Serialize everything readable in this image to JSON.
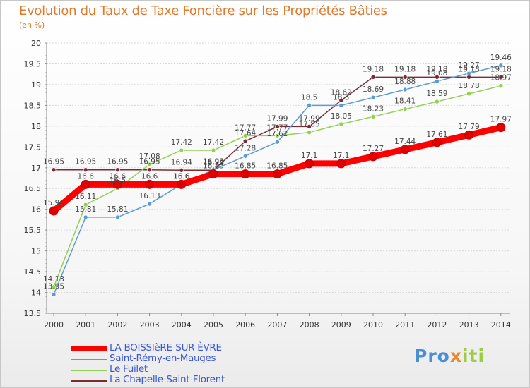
{
  "chart_data": {
    "type": "line",
    "title": "Evolution du Taux de Taxe Foncière sur les Propriétés Bâties",
    "unit_label": "(en %)",
    "xlabel": "",
    "ylabel": "",
    "x": [
      "2000",
      "2001",
      "2002",
      "2003",
      "2004",
      "2005",
      "2006",
      "2007",
      "2008",
      "2009",
      "2010",
      "2011",
      "2012",
      "2013",
      "2014"
    ],
    "ylim": [
      13.5,
      20
    ],
    "yticks": [
      "13.5",
      "14",
      "14.5",
      "15",
      "15.5",
      "16",
      "16.5",
      "17",
      "17.5",
      "18",
      "18.5",
      "19",
      "19.5",
      "20"
    ],
    "series": [
      {
        "name": "LA BOISSIèRE-SUR-ÈVRE",
        "color": "#ff0000",
        "values": [
          15.96,
          16.6,
          16.6,
          16.6,
          16.6,
          16.85,
          16.85,
          16.85,
          17.1,
          17.1,
          17.27,
          17.44,
          17.61,
          17.79,
          17.97
        ]
      },
      {
        "name": "Saint-Rémy-en-Mauges",
        "color": "#5b9bd5",
        "values": [
          13.95,
          15.81,
          15.81,
          16.13,
          16.6,
          16.95,
          17.28,
          17.62,
          18.5,
          18.5,
          18.69,
          18.88,
          19.08,
          19.27,
          19.46
        ]
      },
      {
        "name": "Le Fuilet",
        "color": "#92d050",
        "values": [
          14.13,
          16.11,
          16.5,
          17.08,
          17.42,
          17.42,
          17.77,
          17.77,
          17.85,
          18.05,
          18.23,
          18.41,
          18.59,
          18.78,
          18.97
        ]
      },
      {
        "name": "La Chapelle-Saint-Florent",
        "color": "#7b2c33",
        "values": [
          16.95,
          16.95,
          16.95,
          16.95,
          16.94,
          16.94,
          17.64,
          17.99,
          17.99,
          18.62,
          19.18,
          19.18,
          19.18,
          19.18,
          19.18
        ]
      }
    ]
  },
  "data_labels": [
    [
      "15.96",
      "16.6",
      "16.6",
      "16.6",
      "16.6",
      "16.85",
      "16.85",
      "16.85",
      "17.1",
      "17.1",
      "17.27",
      "17.44",
      "17.61",
      "17.79",
      "17.97"
    ],
    [
      "13.95",
      "15.81",
      "15.81",
      "16.13",
      "16.6",
      "16.95",
      "17.28",
      "17.62",
      "18.5",
      "18.5",
      "18.69",
      "18.88",
      "19.08",
      "19.27",
      "19.46"
    ],
    [
      "14.13",
      "16.11",
      "16.5",
      "17.08",
      "17.42",
      "17.42",
      "17.77",
      "17.77",
      "17.85",
      "18.05",
      "18.23",
      "18.41",
      "18.59",
      "18.78",
      "18.97"
    ],
    [
      "16.95",
      "16.95",
      "16.95",
      "16.95",
      "16.94",
      "16.94",
      "17.64",
      "17.99",
      "17.99",
      "18.62",
      "19.18",
      "19.18",
      "19.18",
      "19.18",
      "19.18"
    ]
  ],
  "legend": [
    "LA BOISSIèRE-SUR-ÈVRE",
    "Saint-Rémy-en-Mauges",
    "Le Fuilet",
    "La Chapelle-Saint-Florent"
  ],
  "logo": {
    "part1": "Pro",
    "part2": "x",
    "part3": "iti"
  }
}
